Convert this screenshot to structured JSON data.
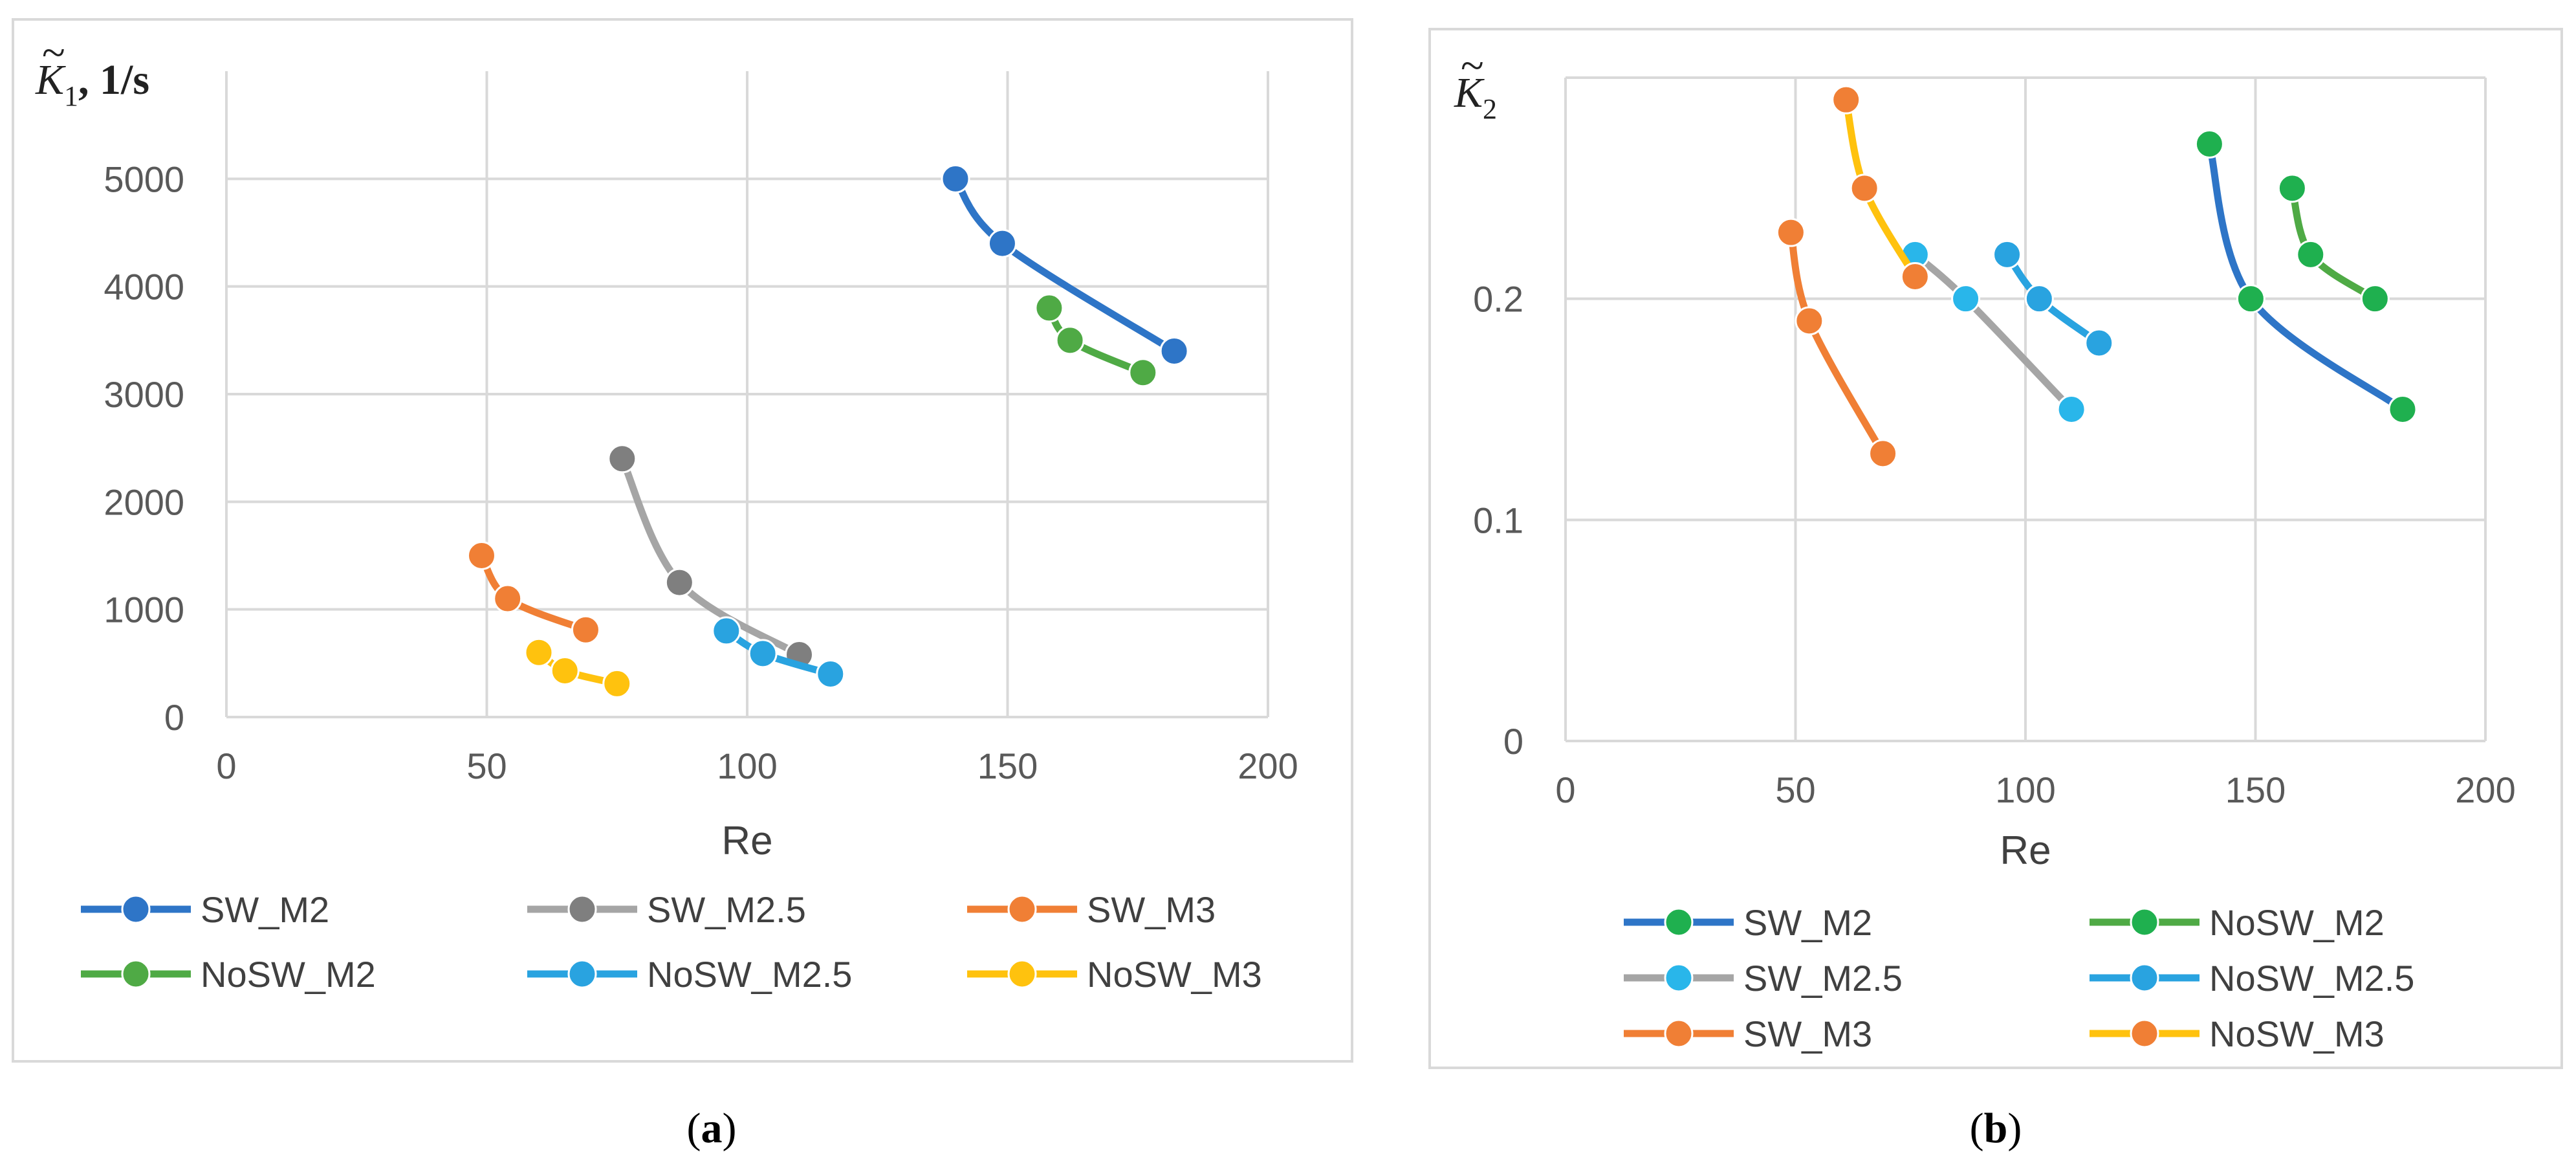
{
  "chart_data": [
    {
      "type": "line",
      "panel_label": "a",
      "ylabel_symbol": "K",
      "ylabel_sub": "1",
      "ylabel_unit": ", 1/s",
      "xlabel": "Re",
      "xlim": [
        0,
        200
      ],
      "ylim": [
        0,
        6000
      ],
      "x_ticks": [
        "0",
        "50",
        "100",
        "150",
        "200"
      ],
      "y_ticks": [
        "0",
        "1000",
        "2000",
        "3000",
        "4000",
        "5000"
      ],
      "grid": true,
      "legend_position": "bottom",
      "series": [
        {
          "name": "SW_M2",
          "line_color": "#2e75c7",
          "marker_color": "#2e75c7",
          "x": [
            140,
            149,
            182
          ],
          "y": [
            5000,
            4400,
            3400
          ]
        },
        {
          "name": "SW_M2.5",
          "line_color": "#a5a5a5",
          "marker_color": "#7f7f7f",
          "x": [
            76,
            87,
            110
          ],
          "y": [
            2400,
            1250,
            580
          ]
        },
        {
          "name": "SW_M3",
          "line_color": "#f07f35",
          "marker_color": "#f07f35",
          "x": [
            49,
            54,
            69
          ],
          "y": [
            1500,
            1100,
            810
          ]
        },
        {
          "name": "NoSW_M2",
          "line_color": "#4faa45",
          "marker_color": "#4faa45",
          "x": [
            158,
            162,
            176
          ],
          "y": [
            3800,
            3500,
            3200
          ]
        },
        {
          "name": "NoSW_M2.5",
          "line_color": "#29a3e0",
          "marker_color": "#29a3e0",
          "x": [
            96,
            103,
            116
          ],
          "y": [
            800,
            590,
            400
          ]
        },
        {
          "name": "NoSW_M3",
          "line_color": "#ffc20e",
          "marker_color": "#ffc20e",
          "x": [
            60,
            65,
            75
          ],
          "y": [
            600,
            430,
            310
          ]
        }
      ]
    },
    {
      "type": "line",
      "panel_label": "b",
      "ylabel_symbol": "K",
      "ylabel_sub": "2",
      "ylabel_unit": "",
      "xlabel": "Re",
      "xlim": [
        0,
        200
      ],
      "ylim": [
        0,
        0.3
      ],
      "x_ticks": [
        "0",
        "50",
        "100",
        "150",
        "200"
      ],
      "y_ticks": [
        "0",
        "0.1",
        "0.2"
      ],
      "grid": true,
      "legend_position": "bottom",
      "series": [
        {
          "name": "SW_M2",
          "line_color": "#2e75c7",
          "marker_color": "#1fb04f",
          "x": [
            140,
            149,
            182
          ],
          "y": [
            0.27,
            0.2,
            0.15
          ]
        },
        {
          "name": "NoSW_M2",
          "line_color": "#4faa45",
          "marker_color": "#1fb04f",
          "x": [
            158,
            162,
            176
          ],
          "y": [
            0.25,
            0.22,
            0.2
          ]
        },
        {
          "name": "SW_M2.5",
          "line_color": "#a5a5a5",
          "marker_color": "#29b6ea",
          "x": [
            76,
            87,
            110
          ],
          "y": [
            0.22,
            0.2,
            0.15
          ]
        },
        {
          "name": "NoSW_M2.5",
          "line_color": "#29a3e0",
          "marker_color": "#29a3e0",
          "x": [
            96,
            103,
            116
          ],
          "y": [
            0.22,
            0.2,
            0.18
          ]
        },
        {
          "name": "SW_M3",
          "line_color": "#f07f35",
          "marker_color": "#f07f35",
          "x": [
            49,
            53,
            69
          ],
          "y": [
            0.23,
            0.19,
            0.13
          ]
        },
        {
          "name": "NoSW_M3",
          "line_color": "#ffc20e",
          "marker_color": "#f07f35",
          "x": [
            61,
            65,
            76
          ],
          "y": [
            0.29,
            0.25,
            0.21
          ]
        }
      ]
    }
  ]
}
